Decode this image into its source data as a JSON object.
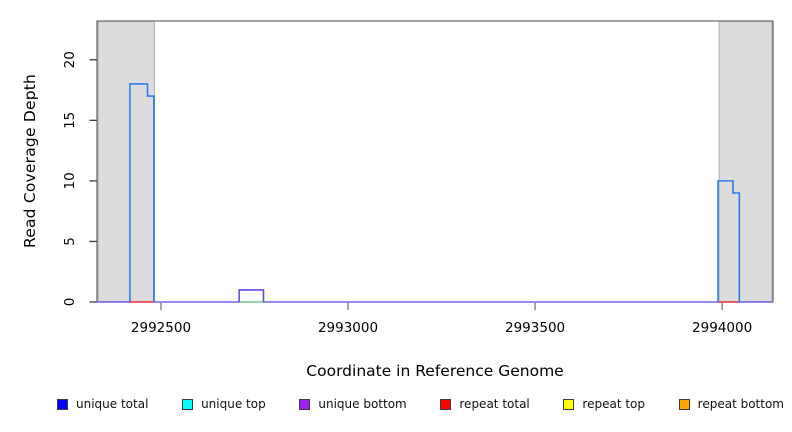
{
  "chart_data": {
    "type": "line",
    "title": "",
    "xlabel": "Coordinate in Reference Genome",
    "ylabel": "Read Coverage Depth",
    "xlim": [
      2992329,
      2994136
    ],
    "ylim": [
      0,
      23.2
    ],
    "x_ticks": [
      2992500,
      2993000,
      2993500,
      2994000
    ],
    "y_ticks": [
      0,
      5,
      10,
      15,
      20
    ],
    "grid": false,
    "legend_position": "bottom",
    "frame_color": "#454545",
    "x_tick_color": "#757575",
    "y_tick_color": "#3a3a3a",
    "repeat_regions": {
      "fill": "#dcdcdc",
      "border": "#ababab",
      "intervals": [
        [
          2992332,
          2992483
        ],
        [
          2993992,
          2994133
        ]
      ]
    },
    "baseline": {
      "color": "#7064ea",
      "depth": 0
    },
    "baseline_overlays": [
      {
        "series": "repeat total",
        "color": "#ff4545",
        "interval": [
          2992417,
          2992481
        ],
        "depth": 0
      },
      {
        "series": "unique top",
        "color": "#8edc8e",
        "interval": [
          2992709,
          2992774
        ],
        "depth": 0
      },
      {
        "series": "repeat total",
        "color": "#ff4545",
        "interval": [
          2993989,
          2994046
        ],
        "depth": 0
      }
    ],
    "peaks": [
      {
        "series": "unique total",
        "color": "#2b7ce9",
        "steps": [
          {
            "start": 2992417,
            "end": 2992464,
            "depth": 18
          },
          {
            "start": 2992464,
            "end": 2992481,
            "depth": 17
          }
        ]
      },
      {
        "series": "unique bottom",
        "color": "#5b4fe4",
        "steps": [
          {
            "start": 2992709,
            "end": 2992774,
            "depth": 1
          }
        ]
      },
      {
        "series": "unique total",
        "color": "#2b7ce9",
        "steps": [
          {
            "start": 2993989,
            "end": 2994029,
            "depth": 10
          },
          {
            "start": 2994029,
            "end": 2994046,
            "depth": 9
          }
        ]
      }
    ]
  },
  "legend": {
    "items": [
      {
        "label": "unique total",
        "color": "#0000ff"
      },
      {
        "label": "unique top",
        "color": "#00ffff"
      },
      {
        "label": "unique bottom",
        "color": "#a020f0"
      },
      {
        "label": "repeat total",
        "color": "#ff0000"
      },
      {
        "label": "repeat top",
        "color": "#ffff00"
      },
      {
        "label": "repeat bottom",
        "color": "#ffa500"
      }
    ]
  }
}
